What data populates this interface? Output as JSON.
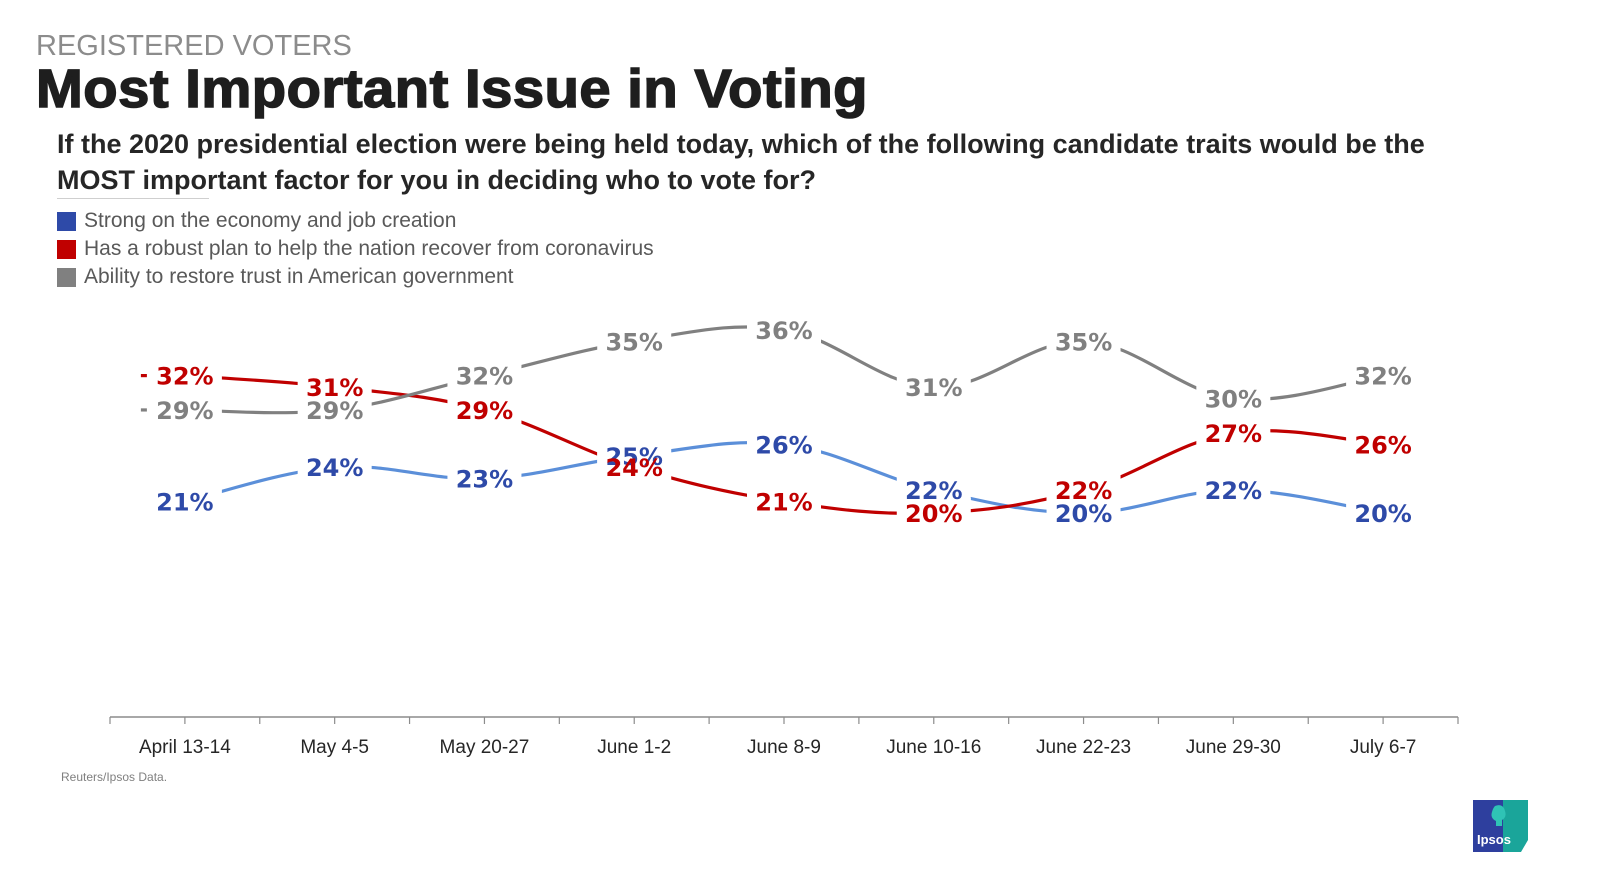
{
  "header": {
    "kicker": "REGISTERED VOTERS",
    "title": "Most Important Issue in Voting",
    "question": "If the 2020 presidential election were being held today, which of the following candidate traits would be the MOST important factor for you in deciding who to vote for?"
  },
  "colors": {
    "economy": "#2e4aa8",
    "economy_line": "#5b8fd9",
    "coronavirus": "#c00000",
    "trust": "#808080"
  },
  "legend": [
    {
      "label": "Strong on the economy and job creation",
      "color": "#2e4aa8"
    },
    {
      "label": "Has a robust plan to help the nation recover from coronavirus",
      "color": "#c00000"
    },
    {
      "label": "Ability to restore trust in American government",
      "color": "#808080"
    }
  ],
  "footer": {
    "source": "Reuters/Ipsos Data.",
    "logo_text": "Ipsos"
  },
  "chart_data": {
    "type": "line",
    "title": "Most Important Issue in Voting",
    "xlabel": "",
    "ylabel": "",
    "ylim": [
      0,
      40
    ],
    "grid": false,
    "legend_position": "top-left",
    "categories": [
      "April 13-14",
      "May 4-5",
      "May 20-27",
      "June 1-2",
      "June 8-9",
      "June 10-16",
      "June 22-23",
      "June 29-30",
      "July 6-7"
    ],
    "series": [
      {
        "name": "Strong on the economy and job creation",
        "values": [
          21,
          24,
          23,
          25,
          26,
          22,
          20,
          22,
          20
        ],
        "unit": "%"
      },
      {
        "name": "Has a robust plan to help the nation recover from coronavirus",
        "values": [
          32,
          31,
          29,
          24,
          21,
          20,
          22,
          27,
          26
        ],
        "unit": "%"
      },
      {
        "name": "Ability to restore trust in American government",
        "values": [
          29,
          29,
          32,
          35,
          36,
          31,
          35,
          30,
          32
        ],
        "unit": "%"
      }
    ]
  }
}
